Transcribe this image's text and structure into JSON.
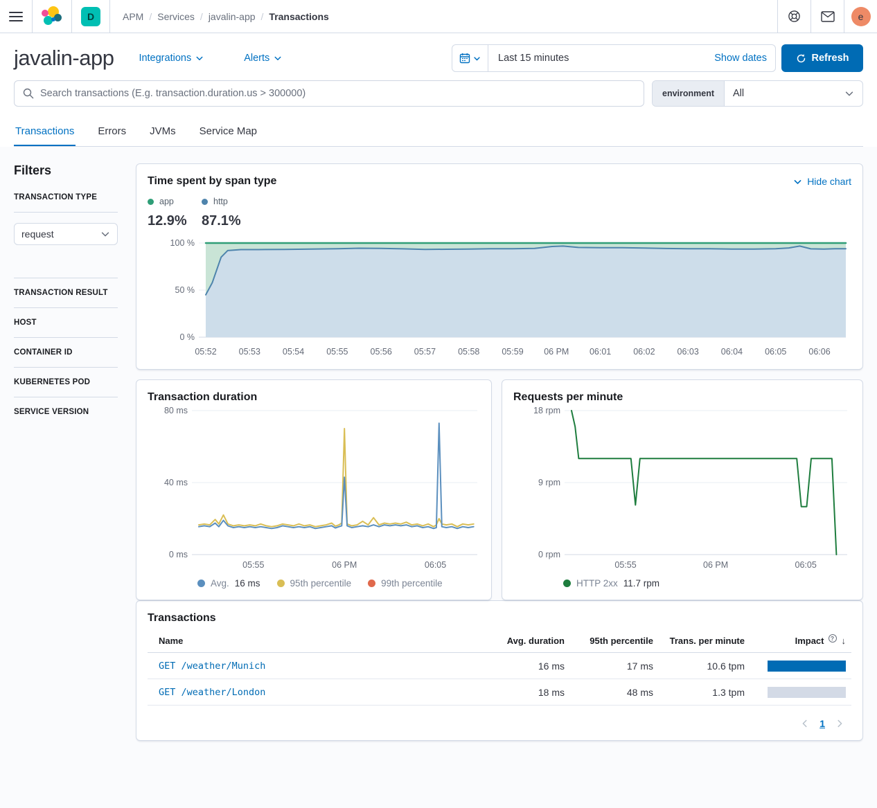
{
  "topbar": {
    "breadcrumb": [
      {
        "label": "APM"
      },
      {
        "label": "Services"
      },
      {
        "label": "javalin-app"
      },
      {
        "label": "Transactions"
      }
    ],
    "breadcrumb_sep": "/",
    "space_badge": "D",
    "avatar_initial": "e"
  },
  "header": {
    "title": "javalin-app",
    "integrations_label": "Integrations",
    "alerts_label": "Alerts",
    "time_range": "Last 15 minutes",
    "show_dates_label": "Show dates",
    "refresh_label": "Refresh"
  },
  "search": {
    "placeholder": "Search transactions (E.g. transaction.duration.us > 300000)",
    "env_label": "environment",
    "env_value": "All"
  },
  "tabs": [
    {
      "label": "Transactions",
      "active": true
    },
    {
      "label": "Errors",
      "active": false
    },
    {
      "label": "JVMs",
      "active": false
    },
    {
      "label": "Service Map",
      "active": false
    }
  ],
  "filters": {
    "title": "Filters",
    "sections": [
      {
        "label": "TRANSACTION TYPE",
        "value": "request"
      },
      {
        "label": "TRANSACTION RESULT"
      },
      {
        "label": "HOST"
      },
      {
        "label": "CONTAINER ID"
      },
      {
        "label": "KUBERNETES POD"
      },
      {
        "label": "SERVICE VERSION"
      }
    ]
  },
  "span_chart": {
    "title": "Time spent by span type",
    "hide_chart_label": "Hide chart",
    "legend": [
      {
        "label": "app",
        "pct": "12.9%",
        "color": "#2f9e77"
      },
      {
        "label": "http",
        "pct": "87.1%",
        "color": "#4e84ac"
      }
    ]
  },
  "duration_panel": {
    "title": "Transaction duration",
    "legend": [
      {
        "label": "Avg.",
        "value": "16 ms",
        "color": "#5b8fbe"
      },
      {
        "label": "95th percentile",
        "value": "",
        "color": "#d9be55"
      },
      {
        "label": "99th percentile",
        "value": "",
        "color": "#e0694c"
      }
    ]
  },
  "rpm_panel": {
    "title": "Requests per minute",
    "legend": [
      {
        "label": "HTTP 2xx",
        "value": "11.7 rpm",
        "color": "#1e7d3e"
      }
    ]
  },
  "chart_data": [
    {
      "type": "area",
      "title": "Time spent by span type",
      "stacked": true,
      "x_unit": "minutes after 05:52",
      "x_domain": [
        0,
        14.6
      ],
      "ylim": [
        0,
        100
      ],
      "yticks": [
        {
          "v": 100,
          "label": "100 %"
        },
        {
          "v": 50,
          "label": "50 %"
        },
        {
          "v": 0,
          "label": "0 %"
        }
      ],
      "xticks": [
        {
          "x": 0,
          "label": "05:52"
        },
        {
          "x": 1,
          "label": "05:53"
        },
        {
          "x": 2,
          "label": "05:54"
        },
        {
          "x": 3,
          "label": "05:55"
        },
        {
          "x": 4,
          "label": "05:56"
        },
        {
          "x": 5,
          "label": "05:57"
        },
        {
          "x": 6,
          "label": "05:58"
        },
        {
          "x": 7,
          "label": "05:59"
        },
        {
          "x": 8,
          "label": "06 PM"
        },
        {
          "x": 9,
          "label": "06:01"
        },
        {
          "x": 10,
          "label": "06:02"
        },
        {
          "x": 11,
          "label": "06:03"
        },
        {
          "x": 12,
          "label": "06:04"
        },
        {
          "x": 13,
          "label": "06:05"
        },
        {
          "x": 14,
          "label": "06:06"
        }
      ],
      "series": [
        {
          "name": "http",
          "color": "#4e84ac",
          "fill": "#cdddea",
          "unit": "%",
          "points": [
            [
              0,
              45
            ],
            [
              0.15,
              58
            ],
            [
              0.35,
              85
            ],
            [
              0.5,
              92
            ],
            [
              0.8,
              93
            ],
            [
              1.2,
              93
            ],
            [
              1.8,
              93.2
            ],
            [
              2.4,
              93.5
            ],
            [
              3,
              94
            ],
            [
              3.5,
              94.5
            ],
            [
              4,
              94.3
            ],
            [
              4.5,
              93.8
            ],
            [
              5,
              93.2
            ],
            [
              5.5,
              93.4
            ],
            [
              6,
              93.6
            ],
            [
              6.5,
              94
            ],
            [
              7,
              94
            ],
            [
              7.5,
              94.3
            ],
            [
              7.9,
              96.3
            ],
            [
              8.15,
              96.8
            ],
            [
              8.5,
              95.3
            ],
            [
              9,
              95
            ],
            [
              9.5,
              95
            ],
            [
              10,
              94.6
            ],
            [
              10.5,
              94.2
            ],
            [
              11,
              94
            ],
            [
              11.5,
              94
            ],
            [
              12,
              93.6
            ],
            [
              12.5,
              93.5
            ],
            [
              13,
              94
            ],
            [
              13.3,
              94.8
            ],
            [
              13.55,
              96.8
            ],
            [
              13.8,
              93.8
            ],
            [
              14.1,
              93.5
            ],
            [
              14.35,
              94
            ],
            [
              14.6,
              94
            ]
          ]
        },
        {
          "name": "app",
          "color": "#2f9e77",
          "fill": "#c9e4d6",
          "unit": "%",
          "note": "stacked remainder up to 100%"
        }
      ]
    },
    {
      "type": "line",
      "title": "Transaction duration",
      "x_unit": "minutes after 05:52",
      "x_domain": [
        0,
        15.3
      ],
      "ylim": [
        0,
        80
      ],
      "yticks": [
        {
          "v": 80,
          "label": "80 ms"
        },
        {
          "v": 40,
          "label": "40 ms"
        },
        {
          "v": 0,
          "label": "0 ms"
        }
      ],
      "xticks": [
        {
          "x": 3,
          "label": "05:55"
        },
        {
          "x": 8,
          "label": "06 PM"
        },
        {
          "x": 13,
          "label": "06:05"
        }
      ],
      "series": [
        {
          "name": "95th percentile",
          "color": "#d9be55",
          "unit": "ms",
          "points": [
            [
              0,
              16.5
            ],
            [
              0.3,
              17
            ],
            [
              0.6,
              16.5
            ],
            [
              0.9,
              19.5
            ],
            [
              1.1,
              17
            ],
            [
              1.35,
              22
            ],
            [
              1.6,
              17
            ],
            [
              1.9,
              16
            ],
            [
              2.2,
              16.5
            ],
            [
              2.5,
              16
            ],
            [
              2.8,
              16.5
            ],
            [
              3.1,
              16
            ],
            [
              3.4,
              17
            ],
            [
              3.7,
              16
            ],
            [
              4,
              15.5
            ],
            [
              4.3,
              16
            ],
            [
              4.6,
              17
            ],
            [
              4.9,
              16.5
            ],
            [
              5.2,
              16
            ],
            [
              5.5,
              17
            ],
            [
              5.8,
              16
            ],
            [
              6.1,
              16.5
            ],
            [
              6.4,
              15.5
            ],
            [
              6.7,
              16
            ],
            [
              7,
              16.5
            ],
            [
              7.3,
              17.5
            ],
            [
              7.5,
              15.8
            ],
            [
              7.7,
              16.5
            ],
            [
              7.85,
              17.5
            ],
            [
              8,
              70
            ],
            [
              8.15,
              17
            ],
            [
              8.4,
              16
            ],
            [
              8.7,
              16.5
            ],
            [
              9,
              18.5
            ],
            [
              9.3,
              16.5
            ],
            [
              9.6,
              20.5
            ],
            [
              9.9,
              16.5
            ],
            [
              10.2,
              17.5
            ],
            [
              10.5,
              17
            ],
            [
              10.8,
              17.5
            ],
            [
              11.1,
              17
            ],
            [
              11.4,
              18
            ],
            [
              11.7,
              16.5
            ],
            [
              12,
              17
            ],
            [
              12.3,
              16
            ],
            [
              12.6,
              17
            ],
            [
              12.9,
              15.5
            ],
            [
              13.05,
              16.5
            ],
            [
              13.2,
              20
            ],
            [
              13.35,
              17
            ],
            [
              13.6,
              16.5
            ],
            [
              13.9,
              17
            ],
            [
              14.2,
              15.5
            ],
            [
              14.5,
              17
            ],
            [
              14.8,
              16.5
            ],
            [
              15.1,
              17
            ]
          ]
        },
        {
          "name": "Avg. 16 ms",
          "color": "#5b8fbe",
          "unit": "ms",
          "points": [
            [
              0,
              15.5
            ],
            [
              0.3,
              16
            ],
            [
              0.6,
              15.5
            ],
            [
              0.9,
              17.5
            ],
            [
              1.1,
              15.5
            ],
            [
              1.35,
              19
            ],
            [
              1.6,
              16
            ],
            [
              1.9,
              15
            ],
            [
              2.2,
              15.5
            ],
            [
              2.5,
              15
            ],
            [
              2.8,
              15.5
            ],
            [
              3.1,
              15
            ],
            [
              3.4,
              15.5
            ],
            [
              3.7,
              15
            ],
            [
              4,
              14.5
            ],
            [
              4.3,
              15
            ],
            [
              4.6,
              16
            ],
            [
              4.9,
              15.5
            ],
            [
              5.2,
              15
            ],
            [
              5.5,
              15.5
            ],
            [
              5.8,
              15
            ],
            [
              6.1,
              15.5
            ],
            [
              6.4,
              14.5
            ],
            [
              6.7,
              15
            ],
            [
              7,
              15.5
            ],
            [
              7.3,
              16
            ],
            [
              7.5,
              14.8
            ],
            [
              7.7,
              15.5
            ],
            [
              7.85,
              16
            ],
            [
              8,
              43
            ],
            [
              8.15,
              16
            ],
            [
              8.4,
              15
            ],
            [
              8.7,
              15.5
            ],
            [
              9,
              16
            ],
            [
              9.3,
              15.5
            ],
            [
              9.6,
              16.5
            ],
            [
              9.9,
              15.5
            ],
            [
              10.2,
              16.5
            ],
            [
              10.5,
              16
            ],
            [
              10.8,
              16.5
            ],
            [
              11.1,
              16
            ],
            [
              11.4,
              16.5
            ],
            [
              11.7,
              15.5
            ],
            [
              12,
              16
            ],
            [
              12.3,
              15
            ],
            [
              12.6,
              15.5
            ],
            [
              12.9,
              14.5
            ],
            [
              13.05,
              15
            ],
            [
              13.2,
              73
            ],
            [
              13.35,
              15.5
            ],
            [
              13.6,
              15
            ],
            [
              13.9,
              15.5
            ],
            [
              14.2,
              14.5
            ],
            [
              14.5,
              15.5
            ],
            [
              14.8,
              15
            ],
            [
              15.1,
              15.5
            ]
          ]
        }
      ]
    },
    {
      "type": "line",
      "title": "Requests per minute",
      "x_unit": "minutes after 05:52",
      "x_domain": [
        0,
        15.3
      ],
      "ylim": [
        0,
        18
      ],
      "yticks": [
        {
          "v": 18,
          "label": "18 rpm"
        },
        {
          "v": 9,
          "label": "9 rpm"
        },
        {
          "v": 0,
          "label": "0 rpm"
        }
      ],
      "xticks": [
        {
          "x": 3,
          "label": "05:55"
        },
        {
          "x": 8,
          "label": "06 PM"
        },
        {
          "x": 13,
          "label": "06:05"
        }
      ],
      "series": [
        {
          "name": "HTTP 2xx",
          "color": "#1e7d3e",
          "unit": "rpm",
          "points": [
            [
              0,
              18
            ],
            [
              0.2,
              16
            ],
            [
              0.4,
              12
            ],
            [
              3.3,
              12
            ],
            [
              3.55,
              6.2
            ],
            [
              3.8,
              12
            ],
            [
              12.5,
              12
            ],
            [
              12.75,
              6
            ],
            [
              13.05,
              6
            ],
            [
              13.3,
              12
            ],
            [
              14.45,
              12
            ],
            [
              14.7,
              0
            ]
          ]
        }
      ]
    }
  ],
  "table": {
    "title": "Transactions",
    "columns": [
      "Name",
      "Avg. duration",
      "95th percentile",
      "Trans. per minute",
      "Impact"
    ],
    "impact_help": "?",
    "rows": [
      {
        "name": "GET /weather/Munich",
        "avg": "16 ms",
        "p95": "17 ms",
        "tpm": "10.6 tpm",
        "impact_pct": 100
      },
      {
        "name": "GET /weather/London",
        "avg": "18 ms",
        "p95": "48 ms",
        "tpm": "1.3 tpm",
        "impact_pct": 0
      }
    ],
    "page": "1"
  }
}
